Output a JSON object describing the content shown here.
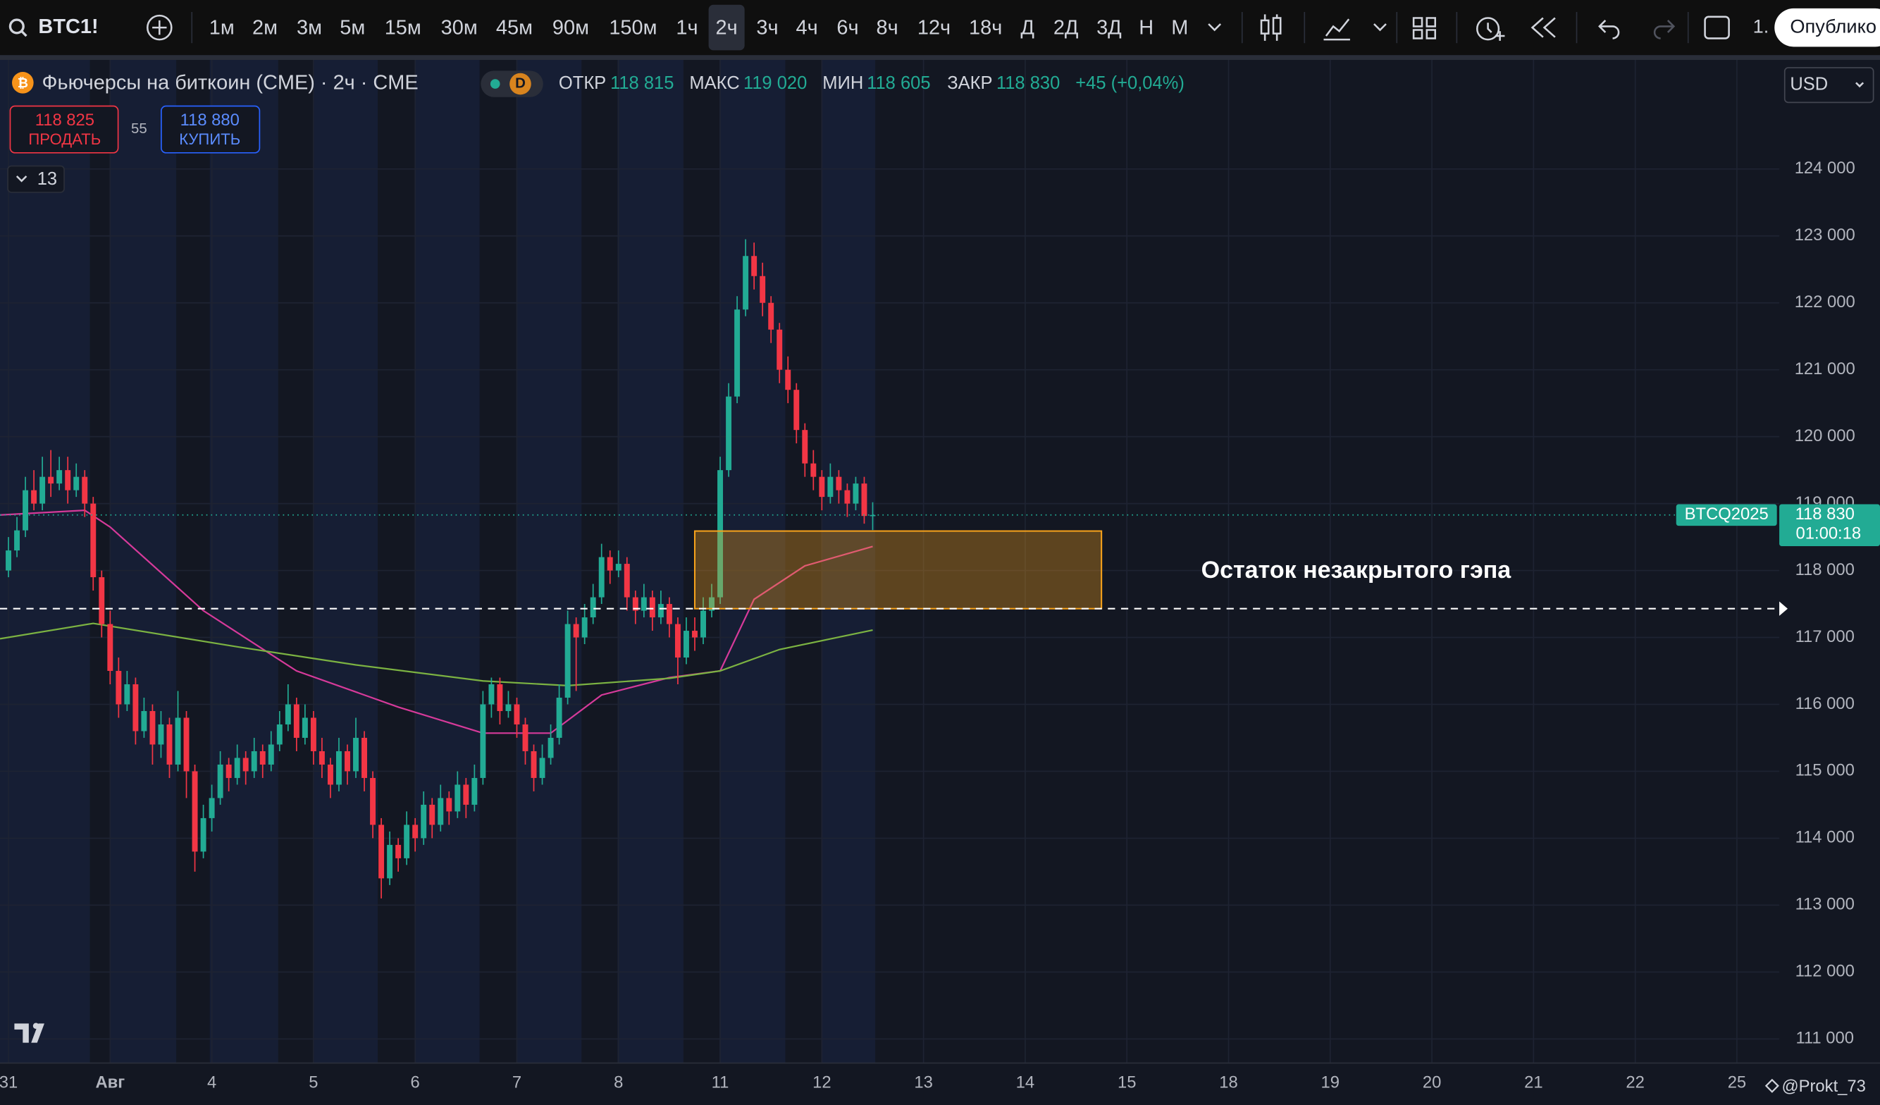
{
  "toolbar": {
    "symbol": "BTC1!",
    "intervals": [
      "1м",
      "2м",
      "3м",
      "5м",
      "15м",
      "30м",
      "45м",
      "90м",
      "150м",
      "1ч",
      "2ч",
      "3ч",
      "4ч",
      "6ч",
      "8ч",
      "12ч",
      "18ч",
      "Д",
      "2Д",
      "3Д",
      "Н",
      "М"
    ],
    "active": 10,
    "more_label": "1.",
    "publish": "Опублико"
  },
  "legend": {
    "title": "Фьючерсы на биткоин (CME) · 2ч · CME",
    "badge": "D",
    "fields": [
      {
        "label": "ОТКР",
        "value": "118 815"
      },
      {
        "label": "МАКС",
        "value": "119 020"
      },
      {
        "label": "МИН",
        "value": "118 605"
      },
      {
        "label": "ЗАКР",
        "value": "118 830"
      }
    ],
    "change": "+45 (+0,04%)"
  },
  "trade": {
    "sell_price": "118 825",
    "sell": "ПРОДАТЬ",
    "spread": "55",
    "buy_price": "118 880",
    "buy": "КУПИТЬ"
  },
  "indicators_count": "13",
  "currency": "USD",
  "watermark": "@Prokt_73",
  "chart_data": {
    "type": "candlestick",
    "up_color": "#22ab94",
    "down_color": "#f23645",
    "grid": true,
    "xlim": [
      -1,
      209
    ],
    "ylim": [
      110640,
      125630
    ],
    "xticks": [
      {
        "value": 0,
        "label": "31"
      },
      {
        "value": 12,
        "label": "Авг"
      },
      {
        "value": 24,
        "label": "4"
      },
      {
        "value": 36,
        "label": "5"
      },
      {
        "value": 48,
        "label": "6"
      },
      {
        "value": 60,
        "label": "7"
      },
      {
        "value": 72,
        "label": "8"
      },
      {
        "value": 84,
        "label": "11"
      },
      {
        "value": 96,
        "label": "12"
      },
      {
        "value": 108,
        "label": "13"
      },
      {
        "value": 120,
        "label": "14"
      },
      {
        "value": 132,
        "label": "15"
      },
      {
        "value": 144,
        "label": "18"
      },
      {
        "value": 156,
        "label": "19"
      },
      {
        "value": 168,
        "label": "20"
      },
      {
        "value": 180,
        "label": "21"
      },
      {
        "value": 192,
        "label": "22"
      },
      {
        "value": 204,
        "label": "25"
      }
    ],
    "yticks": [
      {
        "value": 111000,
        "label": "111 000"
      },
      {
        "value": 112000,
        "label": "112 000"
      },
      {
        "value": 113000,
        "label": "113 000"
      },
      {
        "value": 114000,
        "label": "114 000"
      },
      {
        "value": 115000,
        "label": "115 000"
      },
      {
        "value": 116000,
        "label": "116 000"
      },
      {
        "value": 117000,
        "label": "117 000"
      },
      {
        "value": 118000,
        "label": "118 000"
      },
      {
        "value": 119000,
        "label": "119 000"
      },
      {
        "value": 120000,
        "label": "120 000"
      },
      {
        "value": 121000,
        "label": "121 000"
      },
      {
        "value": 122000,
        "label": "122 000"
      },
      {
        "value": 123000,
        "label": "123 000"
      },
      {
        "value": 124000,
        "label": "124 000"
      }
    ],
    "candles": [
      [
        118000,
        118500,
        117900,
        118300
      ],
      [
        118300,
        118800,
        118200,
        118600
      ],
      [
        118600,
        119400,
        118500,
        119200
      ],
      [
        119200,
        119500,
        118900,
        119000
      ],
      [
        119000,
        119700,
        118900,
        119400
      ],
      [
        119400,
        119800,
        119100,
        119300
      ],
      [
        119300,
        119700,
        119200,
        119500
      ],
      [
        119500,
        119700,
        119000,
        119200
      ],
      [
        119200,
        119600,
        119100,
        119400
      ],
      [
        119400,
        119500,
        118800,
        119000
      ],
      [
        119000,
        119100,
        117700,
        117900
      ],
      [
        117900,
        118000,
        117000,
        117200
      ],
      [
        117200,
        117400,
        116300,
        116500
      ],
      [
        116500,
        116700,
        115800,
        116000
      ],
      [
        116000,
        116500,
        115900,
        116300
      ],
      [
        116300,
        116400,
        115400,
        115600
      ],
      [
        115600,
        116100,
        115500,
        115900
      ],
      [
        115900,
        116000,
        115100,
        115400
      ],
      [
        115400,
        115900,
        115200,
        115700
      ],
      [
        115700,
        115800,
        114900,
        115100
      ],
      [
        115100,
        116200,
        115000,
        115800
      ],
      [
        115800,
        115900,
        114600,
        115000
      ],
      [
        115000,
        115100,
        113500,
        113800
      ],
      [
        113800,
        114500,
        113700,
        114300
      ],
      [
        114300,
        114800,
        114100,
        114600
      ],
      [
        114600,
        115300,
        114500,
        115100
      ],
      [
        115100,
        115200,
        114700,
        114900
      ],
      [
        114900,
        115400,
        114800,
        115200
      ],
      [
        115200,
        115300,
        114800,
        115000
      ],
      [
        115000,
        115500,
        114900,
        115300
      ],
      [
        115300,
        115400,
        114900,
        115100
      ],
      [
        115100,
        115600,
        115000,
        115400
      ],
      [
        115400,
        115900,
        115300,
        115700
      ],
      [
        115700,
        116300,
        115600,
        116000
      ],
      [
        116000,
        116100,
        115300,
        115500
      ],
      [
        115500,
        116000,
        115400,
        115800
      ],
      [
        115800,
        115900,
        115100,
        115300
      ],
      [
        115300,
        115500,
        114900,
        115100
      ],
      [
        115100,
        115200,
        114600,
        114800
      ],
      [
        114800,
        115500,
        114700,
        115300
      ],
      [
        115300,
        115400,
        114800,
        115000
      ],
      [
        115000,
        115800,
        114900,
        115500
      ],
      [
        115500,
        115600,
        114700,
        114900
      ],
      [
        114900,
        115000,
        114000,
        114200
      ],
      [
        114200,
        114300,
        113100,
        113400
      ],
      [
        113400,
        114100,
        113300,
        113900
      ],
      [
        113900,
        114000,
        113500,
        113700
      ],
      [
        113700,
        114400,
        113600,
        114200
      ],
      [
        114200,
        114300,
        113800,
        114000
      ],
      [
        114000,
        114700,
        113900,
        114500
      ],
      [
        114500,
        114600,
        114000,
        114200
      ],
      [
        114200,
        114800,
        114100,
        114600
      ],
      [
        114600,
        114700,
        114200,
        114400
      ],
      [
        114400,
        115000,
        114300,
        114800
      ],
      [
        114800,
        114900,
        114300,
        114500
      ],
      [
        114500,
        115100,
        114400,
        114900
      ],
      [
        114900,
        116200,
        114800,
        116000
      ],
      [
        116000,
        116400,
        115800,
        116300
      ],
      [
        116300,
        116400,
        115700,
        115900
      ],
      [
        115900,
        116200,
        115800,
        116000
      ],
      [
        116000,
        116100,
        115500,
        115700
      ],
      [
        115700,
        115800,
        115100,
        115300
      ],
      [
        115300,
        115400,
        114700,
        114900
      ],
      [
        114900,
        115400,
        114800,
        115200
      ],
      [
        115200,
        115700,
        115100,
        115500
      ],
      [
        115500,
        116300,
        115400,
        116100
      ],
      [
        116100,
        117400,
        116000,
        117200
      ],
      [
        117200,
        117300,
        116200,
        117000
      ],
      [
        117000,
        117500,
        116900,
        117300
      ],
      [
        117300,
        117800,
        117200,
        117600
      ],
      [
        117600,
        118400,
        117500,
        118200
      ],
      [
        118200,
        118300,
        117800,
        118000
      ],
      [
        118000,
        118300,
        117900,
        118100
      ],
      [
        118100,
        118200,
        117400,
        117600
      ],
      [
        117600,
        117700,
        117200,
        117400
      ],
      [
        117400,
        117800,
        117300,
        117600
      ],
      [
        117600,
        117700,
        117100,
        117300
      ],
      [
        117300,
        117700,
        117200,
        117500
      ],
      [
        117500,
        117600,
        117000,
        117200
      ],
      [
        117200,
        117300,
        116300,
        116700
      ],
      [
        116700,
        117300,
        116600,
        117100
      ],
      [
        117100,
        117300,
        116800,
        117000
      ],
      [
        117000,
        117600,
        116900,
        117400
      ],
      [
        117400,
        117800,
        117300,
        117600
      ],
      [
        117600,
        119700,
        117500,
        119500
      ],
      [
        119500,
        120800,
        119400,
        120600
      ],
      [
        120600,
        122100,
        120500,
        121900
      ],
      [
        121900,
        122950,
        121800,
        122700
      ],
      [
        122700,
        122900,
        122200,
        122400
      ],
      [
        122400,
        122600,
        121800,
        122000
      ],
      [
        122000,
        122100,
        121400,
        121600
      ],
      [
        121600,
        121700,
        120800,
        121000
      ],
      [
        121000,
        121200,
        120500,
        120700
      ],
      [
        120700,
        120800,
        119900,
        120100
      ],
      [
        120100,
        120200,
        119400,
        119600
      ],
      [
        119600,
        119800,
        119200,
        119400
      ],
      [
        119400,
        119500,
        118900,
        119100
      ],
      [
        119100,
        119600,
        119000,
        119400
      ],
      [
        119400,
        119500,
        119000,
        119200
      ],
      [
        119200,
        119300,
        118800,
        119000
      ],
      [
        119000,
        119400,
        118900,
        119300
      ],
      [
        119300,
        119400,
        118700,
        118815
      ],
      [
        118815,
        119020,
        118605,
        118830
      ]
    ],
    "ma_lines": [
      {
        "color": "#d63a9a",
        "x": [
          -1,
          9,
          12,
          23,
          34,
          46,
          56,
          64,
          70,
          78,
          84,
          88,
          94,
          102
        ],
        "values": [
          118830,
          118900,
          118650,
          117400,
          116500,
          115960,
          115570,
          115570,
          116140,
          116400,
          116500,
          117570,
          118070,
          118360
        ]
      },
      {
        "color": "#7cb342",
        "x": [
          -1,
          10,
          27,
          41,
          56,
          66,
          78,
          84,
          91,
          102
        ],
        "values": [
          116980,
          117210,
          116860,
          116590,
          116350,
          116280,
          116390,
          116500,
          116820,
          117110
        ]
      }
    ],
    "gap_zone": {
      "top": 118590,
      "bottom": 117430,
      "x_start": 81,
      "x_end": 129,
      "color": "#f7a21b",
      "label": "Остаток незакрытого гэпа"
    },
    "last_price": {
      "value": 118830,
      "label": "118 830",
      "symbol": "BTCQ2025",
      "countdown": "01:00:18"
    }
  }
}
